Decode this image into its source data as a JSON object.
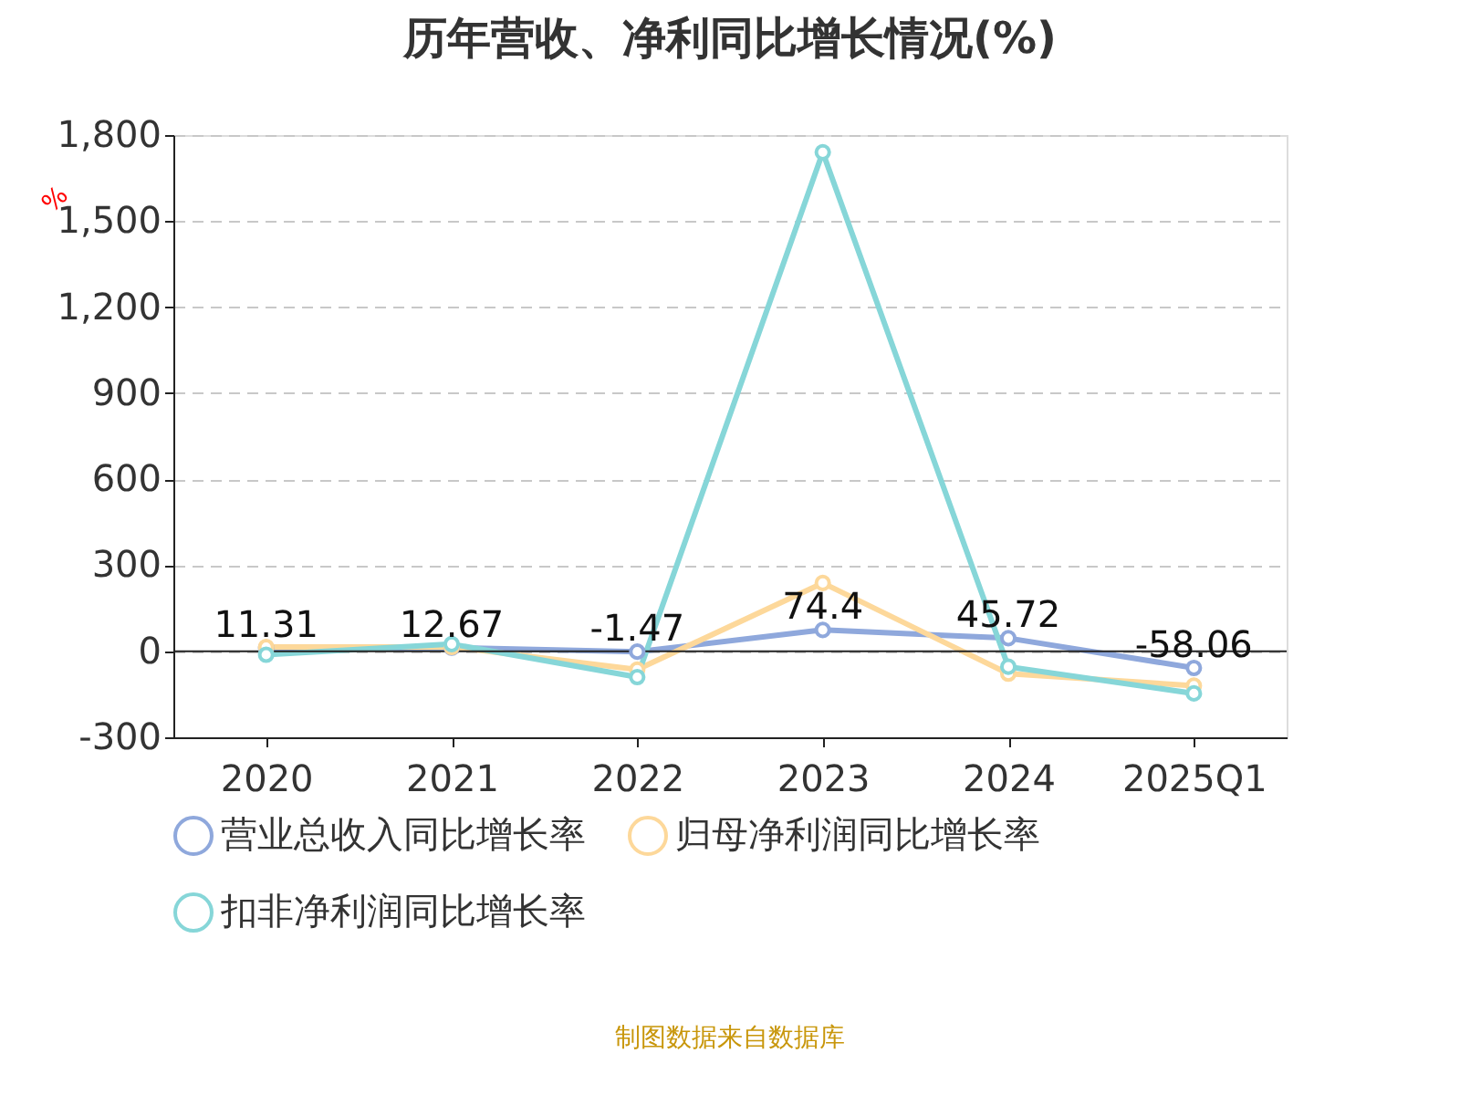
{
  "chart_data": {
    "type": "line",
    "title": "历年营收、净利同比增长情况(%)",
    "ylabel": "%",
    "categories": [
      "2020",
      "2021",
      "2022",
      "2023",
      "2024",
      "2025Q1"
    ],
    "series": [
      {
        "name": "营业总收入同比增长率",
        "color": "#8fa8dc",
        "values": [
          11.31,
          12.67,
          -1.47,
          74.4,
          45.72,
          -58.06
        ],
        "value_labels": [
          "11.31",
          "12.67",
          "-1.47",
          "74.4",
          "45.72",
          "-58.06"
        ]
      },
      {
        "name": "归母净利润同比增长率",
        "color": "#fdd89a",
        "values": [
          15,
          15,
          -64,
          238,
          -78,
          -120
        ]
      },
      {
        "name": "扣非净利润同比增长率",
        "color": "#86d6d8",
        "values": [
          -12,
          25,
          -90,
          1740,
          -54,
          -147
        ]
      }
    ],
    "ylim": [
      -300,
      1800
    ],
    "yticks": [
      -300,
      0,
      300,
      600,
      900,
      {
        "value": 1200,
        "label": "1,200"
      },
      {
        "value": 1500,
        "label": "1,500"
      },
      {
        "value": 1800,
        "label": "1,800"
      }
    ],
    "grid": "y",
    "legend": "bottom",
    "marker": "circle",
    "line_style": "solid",
    "annotations": [
      "制图数据来自数据库"
    ]
  }
}
